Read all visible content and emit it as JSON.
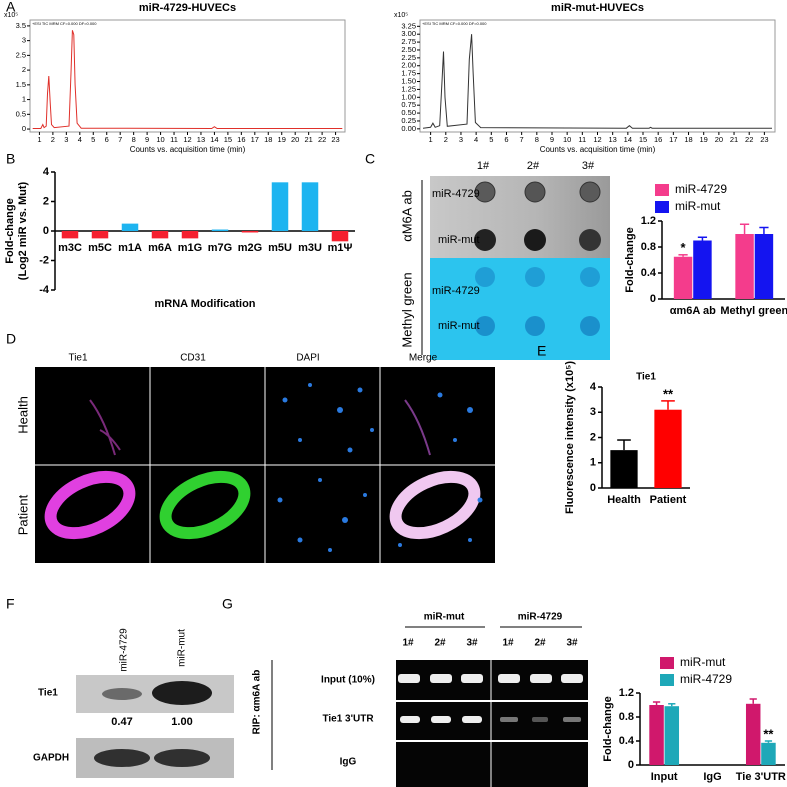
{
  "figure": {
    "letters": [
      "A",
      "B",
      "C",
      "D",
      "E",
      "F",
      "G"
    ],
    "dot_blot": {
      "lanes": [
        "1#",
        "2#",
        "3#"
      ],
      "rows": [
        "miR-4729",
        "miR-mut",
        "miR-4729",
        "miR-mut"
      ],
      "groups": [
        "αM6A ab",
        "Methyl green"
      ]
    },
    "microscopy": {
      "columns": [
        "Tie1",
        "CD31",
        "DAPI",
        "Merge"
      ],
      "rows": [
        "Health",
        "Patient"
      ]
    },
    "western": {
      "lanes": [
        "miR-4729",
        "miR-mut"
      ],
      "proteins": [
        "Tie1",
        "GAPDH"
      ],
      "ratios": [
        "0.47",
        "1.00"
      ]
    },
    "gel": {
      "groups": [
        "miR-mut",
        "miR-4729"
      ],
      "lanes": [
        "1#",
        "2#",
        "3#",
        "1#",
        "2#",
        "3#"
      ],
      "rows": [
        "Input (10%)",
        "Tie1 3'UTR",
        "IgG"
      ],
      "label": "RIP: αm6A ab"
    }
  },
  "chart_data": [
    {
      "type": "line",
      "title": "miR-4729-HUVECs",
      "header": "+ESI TIC MRM CF=0.000 DF=0.000",
      "y_multiplier": "x10⁵",
      "xlabel": "Counts vs. acquisition time (min)",
      "color": "#e0302a",
      "x": [
        0.5,
        1.1,
        1.25,
        1.35,
        1.5,
        1.6,
        1.7,
        1.8,
        1.9,
        2.1,
        3.2,
        3.35,
        3.45,
        3.55,
        3.65,
        3.8,
        4.1,
        13.8,
        14.0,
        14.2,
        23.5
      ],
      "values": [
        0.02,
        0.02,
        0.15,
        0.05,
        0.1,
        1.2,
        1.8,
        0.9,
        0.15,
        0.05,
        0.1,
        2.0,
        3.35,
        3.2,
        1.5,
        0.2,
        0.03,
        0.02,
        0.08,
        0.02,
        0.02
      ],
      "xlim": [
        0.3,
        23.7
      ],
      "ylim": [
        -0.1,
        3.7
      ],
      "xticks": [
        1,
        2,
        3,
        4,
        5,
        6,
        7,
        8,
        9,
        10,
        11,
        12,
        13,
        14,
        15,
        16,
        17,
        18,
        19,
        20,
        21,
        22,
        23
      ],
      "yticks": [
        0,
        0.5,
        1,
        1.5,
        2,
        2.5,
        3,
        3.5
      ]
    },
    {
      "type": "line",
      "title": "miR-mut-HUVECs",
      "header": "+ESI TIC MRM CF=0.000 DF=0.000",
      "y_multiplier": "x10⁵",
      "xlabel": "Counts vs. acquisition time (min)",
      "color": "#333333",
      "x": [
        0.5,
        1.0,
        1.15,
        1.3,
        1.6,
        1.75,
        1.85,
        1.95,
        2.1,
        3.4,
        3.55,
        3.7,
        3.8,
        3.95,
        4.3,
        13.9,
        14.1,
        14.3,
        15.4,
        15.5,
        15.6,
        23.5
      ],
      "values": [
        0.02,
        0.05,
        0.18,
        0.05,
        0.1,
        1.5,
        2.45,
        1.0,
        0.08,
        0.15,
        2.2,
        3.0,
        1.8,
        0.2,
        0.04,
        0.02,
        0.1,
        0.02,
        0.02,
        0.05,
        0.02,
        0.02
      ],
      "xlim": [
        0.3,
        23.7
      ],
      "ylim": [
        -0.1,
        3.45
      ],
      "xticks": [
        1,
        2,
        3,
        4,
        5,
        6,
        7,
        8,
        9,
        10,
        11,
        12,
        13,
        14,
        15,
        16,
        17,
        18,
        19,
        20,
        21,
        22,
        23
      ],
      "yticks": [
        {
          "value": 0,
          "label": "0.00"
        },
        0.25,
        {
          "value": 0.5,
          "label": "0.50"
        },
        0.75,
        {
          "value": 1,
          "label": "1.00"
        },
        1.25,
        {
          "value": 1.5,
          "label": "1.50"
        },
        1.75,
        {
          "value": 2,
          "label": "2.00"
        },
        2.25,
        {
          "value": 2.5,
          "label": "2.50"
        },
        2.75,
        {
          "value": 3,
          "label": "3.00"
        },
        3.25
      ]
    },
    {
      "type": "bar",
      "ylabel": [
        "Fold-change",
        "(Log2 miR vs. Mut)"
      ],
      "xlabel": "mRNA Modification",
      "categories": [
        "m3C",
        "m5C",
        "m1A",
        "m6A",
        "m1G",
        "m7G",
        "m2G",
        "m5U",
        "m3U",
        "m1Ψ"
      ],
      "values": [
        -0.5,
        -0.5,
        0.5,
        -0.5,
        -0.5,
        0.1,
        -0.1,
        3.3,
        3.3,
        -0.7
      ],
      "colors": [
        "#f5202e",
        "#f5202e",
        "#1eb4f0",
        "#f5202e",
        "#f5202e",
        "#1eb4f0",
        "#f5202e",
        "#1eb4f0",
        "#1eb4f0",
        "#f5202e"
      ],
      "ylim": [
        -4,
        4
      ],
      "yticks": [
        -4,
        -2,
        0,
        2,
        4
      ]
    },
    {
      "type": "bar",
      "ylabel": [
        "Fold-change"
      ],
      "categories": [
        "αm6A ab",
        "Methyl green"
      ],
      "series": [
        {
          "name": "miR-4729",
          "color": "#f43c8c",
          "values": [
            0.65,
            1.0
          ],
          "errors": [
            0.03,
            0.15
          ]
        },
        {
          "name": "miR-mut",
          "color": "#1414f0",
          "values": [
            0.9,
            1.0
          ],
          "errors": [
            0.05,
            0.1
          ]
        }
      ],
      "annotations": [
        "*"
      ],
      "legend": "upper left",
      "ylim": [
        0,
        1.2
      ],
      "yticks": [
        0,
        0.4,
        0.8,
        1.2
      ]
    },
    {
      "type": "bar",
      "title": "Tie1",
      "ylabel": [
        "Fluorescence intensity (x10⁵)"
      ],
      "categories": [
        "Health",
        "Patient"
      ],
      "values": [
        1.5,
        3.1
      ],
      "errors": [
        0.4,
        0.35
      ],
      "colors": [
        "#000000",
        "#ff0000"
      ],
      "annotations": [
        "**"
      ],
      "ylim": [
        0,
        4
      ],
      "yticks": [
        0,
        1,
        2,
        3,
        4
      ]
    },
    {
      "type": "bar",
      "ylabel": [
        "Fold-change"
      ],
      "categories": [
        "Input",
        "IgG",
        "Tie 3'UTR"
      ],
      "series": [
        {
          "name": "miR-mut",
          "color": "#d0186c",
          "values": [
            1.0,
            null,
            1.02
          ],
          "errors": [
            0.05,
            null,
            0.08
          ]
        },
        {
          "name": "miR-4729",
          "color": "#1ea8b8",
          "values": [
            0.98,
            null,
            0.37
          ],
          "errors": [
            0.04,
            null,
            0.03
          ]
        }
      ],
      "annotations": [
        "**"
      ],
      "legend": "upper left",
      "ylim": [
        0,
        1.2
      ],
      "yticks": [
        0,
        0.4,
        0.8,
        1.2
      ]
    }
  ]
}
